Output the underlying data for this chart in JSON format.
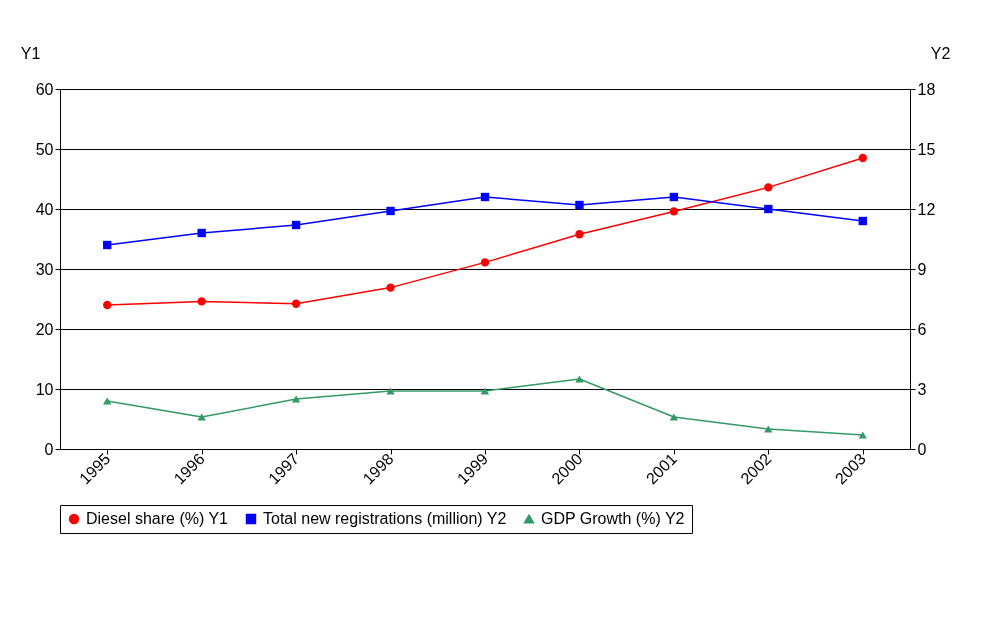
{
  "chart_data": {
    "type": "line",
    "ylabel": "Y1",
    "y2label": "Y2",
    "categories": [
      "1995",
      "1996",
      "1997",
      "1998",
      "1999",
      "2000",
      "2001",
      "2002",
      "2003"
    ],
    "series": [
      {
        "name": "Diesel share (%) Y1",
        "color": "#ff0000",
        "marker": "circle",
        "values": [
          24.0,
          24.6,
          24.2,
          26.9,
          31.1,
          35.8,
          39.6,
          43.6,
          48.5
        ]
      },
      {
        "name": "Total new registrations (million) Y2",
        "color": "#0000ff",
        "marker": "square",
        "axis": "y2",
        "values": [
          10.2,
          10.8,
          11.2,
          11.9,
          12.6,
          12.2,
          12.6,
          12.0,
          11.4
        ]
      },
      {
        "name": "GDP Growth (%) Y2",
        "color": "#339966",
        "marker": "triangle",
        "axis": "y2",
        "values": [
          2.4,
          1.6,
          2.5,
          2.9,
          2.9,
          3.5,
          1.6,
          1.0,
          0.7
        ]
      }
    ],
    "ylim": [
      0,
      60
    ],
    "yticks": [
      0,
      10,
      20,
      30,
      40,
      50,
      60
    ],
    "y2lim": [
      0,
      18
    ],
    "y2ticks": [
      0,
      3,
      6,
      9,
      12,
      15,
      18
    ],
    "grid": "y",
    "legend": "bottom"
  }
}
